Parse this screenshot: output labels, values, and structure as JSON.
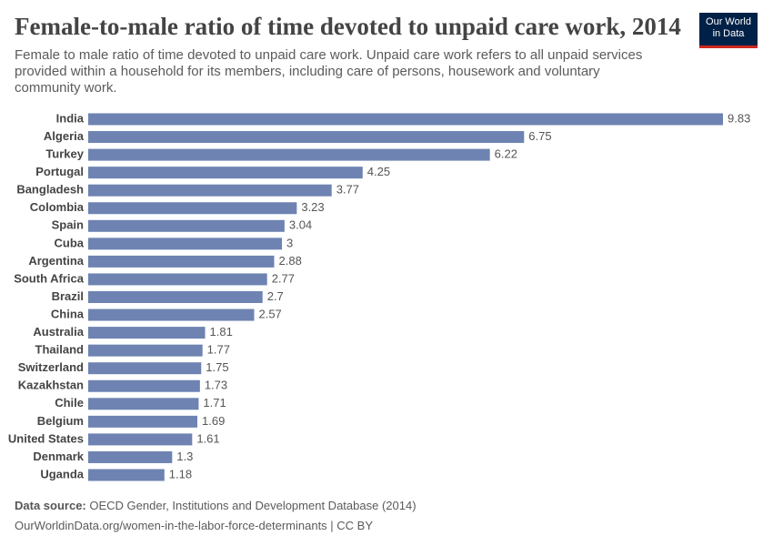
{
  "chart_data": {
    "type": "bar",
    "orientation": "horizontal",
    "title": "Female-to-male ratio of time devoted to unpaid care work, 2014",
    "subtitle": "Female to male ratio of time devoted to unpaid care work. Unpaid care work refers to all unpaid services provided within a household for its members, including care of persons, housework and voluntary community work.",
    "categories": [
      "India",
      "Algeria",
      "Turkey",
      "Portugal",
      "Bangladesh",
      "Colombia",
      "Spain",
      "Cuba",
      "Argentina",
      "South Africa",
      "Brazil",
      "China",
      "Australia",
      "Thailand",
      "Switzerland",
      "Kazakhstan",
      "Chile",
      "Belgium",
      "United States",
      "Denmark",
      "Uganda"
    ],
    "values": [
      9.83,
      6.75,
      6.22,
      4.25,
      3.77,
      3.23,
      3.04,
      3,
      2.88,
      2.77,
      2.7,
      2.57,
      1.81,
      1.77,
      1.75,
      1.73,
      1.71,
      1.69,
      1.61,
      1.3,
      1.18
    ],
    "color": "#6e83b2",
    "source_label": "Data source:",
    "source": "OECD Gender, Institutions and Development Database (2014)",
    "url": "OurWorldinData.org/women-in-the-labor-force-determinants | CC BY",
    "logo": [
      "Our World",
      "in Data"
    ]
  }
}
